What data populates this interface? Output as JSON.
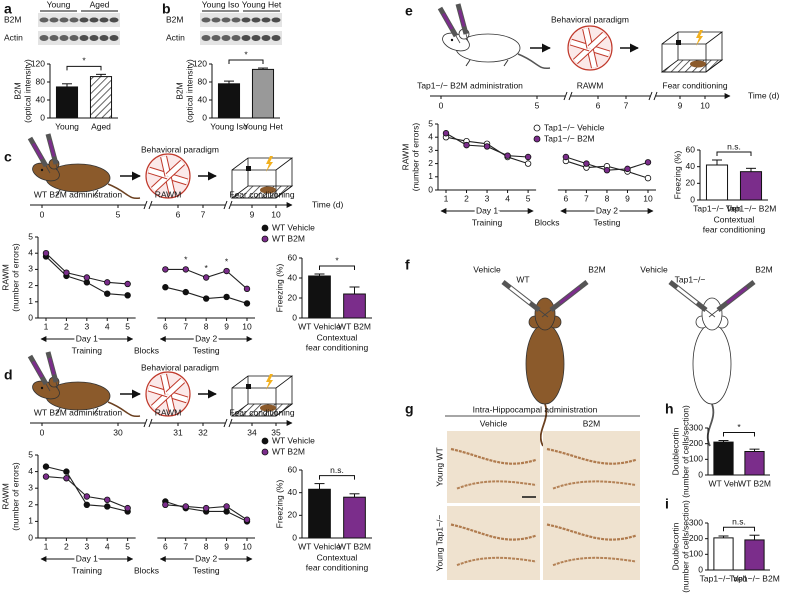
{
  "panels": [
    "a",
    "b",
    "c",
    "d",
    "e",
    "f",
    "g",
    "h",
    "i"
  ],
  "blots": [
    {
      "groups": [
        "Young",
        "Aged"
      ],
      "rows": [
        "B2M",
        "Actin"
      ]
    },
    {
      "groups": [
        "Young Iso",
        "Young Het"
      ],
      "rows": [
        "B2M",
        "Actin"
      ]
    }
  ],
  "schematics": [
    {
      "title": "Behavioral paradigm",
      "steps": [
        "WT B2M administration",
        "RAWM",
        "Fear conditioning"
      ],
      "timeline": [
        0,
        5,
        6,
        7,
        9,
        10
      ],
      "time_label": "Time (d)"
    },
    {
      "title": "Behavioral paradigm",
      "steps": [
        "WT B2M administration",
        "RAWM",
        "Fear conditioning"
      ],
      "timeline": [
        0,
        30,
        31,
        32,
        34,
        35
      ]
    },
    {
      "title": "Behavioral paradigm",
      "steps": [
        "Tap1−/− B2M administration",
        "RAWM",
        "Fear conditioning"
      ],
      "timeline": [
        0,
        5,
        6,
        7,
        9,
        10
      ],
      "time_label": "Time (d)"
    }
  ],
  "injection": [
    {
      "left": "Vehicle",
      "mouse": "WT",
      "right": "B2M"
    },
    {
      "left": "Vehicle",
      "mouse": "Tap1−/−",
      "right": "B2M"
    }
  ],
  "histology": {
    "title": "Intra-Hippocampal administration",
    "columns": [
      "Vehicle",
      "B2M"
    ],
    "rows": [
      "Young WT",
      "Young Tap1−/−"
    ]
  },
  "chart_data": [
    {
      "type": "bar",
      "y_label": [
        "B2M",
        "(optical intensity)"
      ],
      "categories": [
        "Young",
        "Aged"
      ],
      "values": [
        69,
        92
      ],
      "errors": [
        7,
        5
      ],
      "colors": [
        "#111111",
        "#999999"
      ],
      "ylim": [
        0,
        120
      ],
      "yticks": [
        0,
        40,
        80,
        120
      ],
      "annotation": "*"
    },
    {
      "type": "bar",
      "y_label": [
        "B2M",
        "(optical intensity)"
      ],
      "categories": [
        "Young Iso",
        "Young Het"
      ],
      "values": [
        76,
        108
      ],
      "errors": [
        6,
        3
      ],
      "colors": [
        "#111111",
        "#999999"
      ],
      "ylim": [
        0,
        120
      ],
      "yticks": [
        0,
        40,
        80,
        120
      ],
      "annotation": "*"
    },
    {
      "type": "line",
      "y_label": [
        "RAWM",
        "(number of errors)"
      ],
      "x": [
        1,
        2,
        3,
        4,
        5,
        6,
        7,
        8,
        9,
        10
      ],
      "ylim": [
        0,
        5
      ],
      "yticks": [
        0,
        1,
        2,
        3,
        4,
        5
      ],
      "day_labels": [
        "Day 1",
        "Day 2"
      ],
      "phase_labels": [
        "Training",
        "Testing"
      ],
      "x_label": "Blocks",
      "series": [
        {
          "name": "WT Vehicle",
          "color": "#111111",
          "values": [
            3.8,
            2.6,
            2.2,
            1.5,
            1.4,
            1.9,
            1.6,
            1.2,
            1.3,
            0.9
          ]
        },
        {
          "name": "WT B2M",
          "color": "#7b2d8b",
          "values": [
            4.0,
            2.8,
            2.5,
            2.2,
            2.1,
            3.0,
            3.0,
            2.5,
            2.9,
            1.8
          ]
        }
      ],
      "annotations": [
        {
          "x": 7,
          "text": "*"
        },
        {
          "x": 8,
          "text": "*"
        },
        {
          "x": 9,
          "text": "*"
        }
      ]
    },
    {
      "type": "bar",
      "y_label": [
        "Freezing (%)"
      ],
      "categories": [
        "WT Vehicle",
        "WT B2M"
      ],
      "values": [
        42,
        24
      ],
      "errors": [
        2,
        7
      ],
      "colors": [
        "#111111",
        "#7b2d8b"
      ],
      "ylim": [
        0,
        60
      ],
      "yticks": [
        0,
        20,
        40,
        60
      ],
      "annotation": "*",
      "x_label": [
        "Contextual",
        "fear conditioning"
      ]
    },
    {
      "type": "line",
      "y_label": [
        "RAWM",
        "(number of errors)"
      ],
      "x": [
        1,
        2,
        3,
        4,
        5,
        6,
        7,
        8,
        9,
        10
      ],
      "ylim": [
        0,
        5
      ],
      "yticks": [
        0,
        1,
        2,
        3,
        4,
        5
      ],
      "day_labels": [
        "Day 1",
        "Day 2"
      ],
      "phase_labels": [
        "Training",
        "Testing"
      ],
      "x_label": "Blocks",
      "series": [
        {
          "name": "WT Vehicle",
          "color": "#111111",
          "values": [
            4.3,
            4.0,
            2.0,
            1.9,
            1.6,
            2.2,
            1.8,
            1.6,
            1.6,
            1.0
          ]
        },
        {
          "name": "WT B2M",
          "color": "#7b2d8b",
          "values": [
            3.7,
            3.6,
            2.5,
            2.3,
            1.8,
            2.0,
            1.9,
            1.8,
            1.9,
            1.1
          ]
        }
      ]
    },
    {
      "type": "bar",
      "y_label": [
        "Freezing (%)"
      ],
      "categories": [
        "WT Vehicle",
        "WT B2M"
      ],
      "values": [
        43,
        36
      ],
      "errors": [
        5,
        3
      ],
      "colors": [
        "#111111",
        "#7b2d8b"
      ],
      "ylim": [
        0,
        60
      ],
      "yticks": [
        0,
        20,
        40,
        60
      ],
      "annotation": "n.s.",
      "x_label": [
        "Contextual",
        "fear conditioning"
      ]
    },
    {
      "type": "line",
      "y_label": [
        "RAWM",
        "(number of errors)"
      ],
      "x": [
        1,
        2,
        3,
        4,
        5,
        6,
        7,
        8,
        9,
        10
      ],
      "ylim": [
        0,
        5
      ],
      "yticks": [
        0,
        1,
        2,
        3,
        4,
        5
      ],
      "day_labels": [
        "Day 1",
        "Day 2"
      ],
      "phase_labels": [
        "Training",
        "Testing"
      ],
      "x_label": "Blocks",
      "series": [
        {
          "name": "Tap1−/− Vehicle",
          "color": "#ffffff",
          "values": [
            4.0,
            3.7,
            3.5,
            2.5,
            2.0,
            2.2,
            1.7,
            1.8,
            1.4,
            0.9
          ]
        },
        {
          "name": "Tap1−/− B2M",
          "color": "#7b2d8b",
          "values": [
            4.3,
            3.4,
            3.3,
            2.6,
            2.5,
            2.5,
            2.0,
            1.5,
            1.6,
            2.1
          ]
        }
      ]
    },
    {
      "type": "bar",
      "y_label": [
        "Freezing (%)"
      ],
      "categories": [
        "Tap1−/− Veh",
        "Tap1−/− B2M"
      ],
      "values": [
        42,
        34
      ],
      "errors": [
        6,
        4
      ],
      "colors": [
        "#ffffff",
        "#7b2d8b"
      ],
      "ylim": [
        0,
        60
      ],
      "yticks": [
        0,
        20,
        40,
        60
      ],
      "annotation": "n.s.",
      "x_label": [
        "Contextual",
        "fear conditioning"
      ]
    },
    {
      "type": "bar",
      "y_label": [
        "Doublecortin",
        "(number of cells/section)"
      ],
      "categories": [
        "WT Veh",
        "WT B2M"
      ],
      "values": [
        210,
        150
      ],
      "errors": [
        10,
        15
      ],
      "colors": [
        "#111111",
        "#7b2d8b"
      ],
      "ylim": [
        0,
        300
      ],
      "yticks": [
        0,
        100,
        200,
        300
      ],
      "annotation": "*"
    },
    {
      "type": "bar",
      "y_label": [
        "Doublecortin",
        "(number of cells/section)"
      ],
      "categories": [
        "Tap1−/− Veh",
        "Tap1−/− B2M"
      ],
      "values": [
        205,
        192
      ],
      "errors": [
        12,
        30
      ],
      "colors": [
        "#ffffff",
        "#7b2d8b"
      ],
      "ylim": [
        0,
        300
      ],
      "yticks": [
        0,
        100,
        200,
        300
      ],
      "annotation": "n.s."
    }
  ]
}
